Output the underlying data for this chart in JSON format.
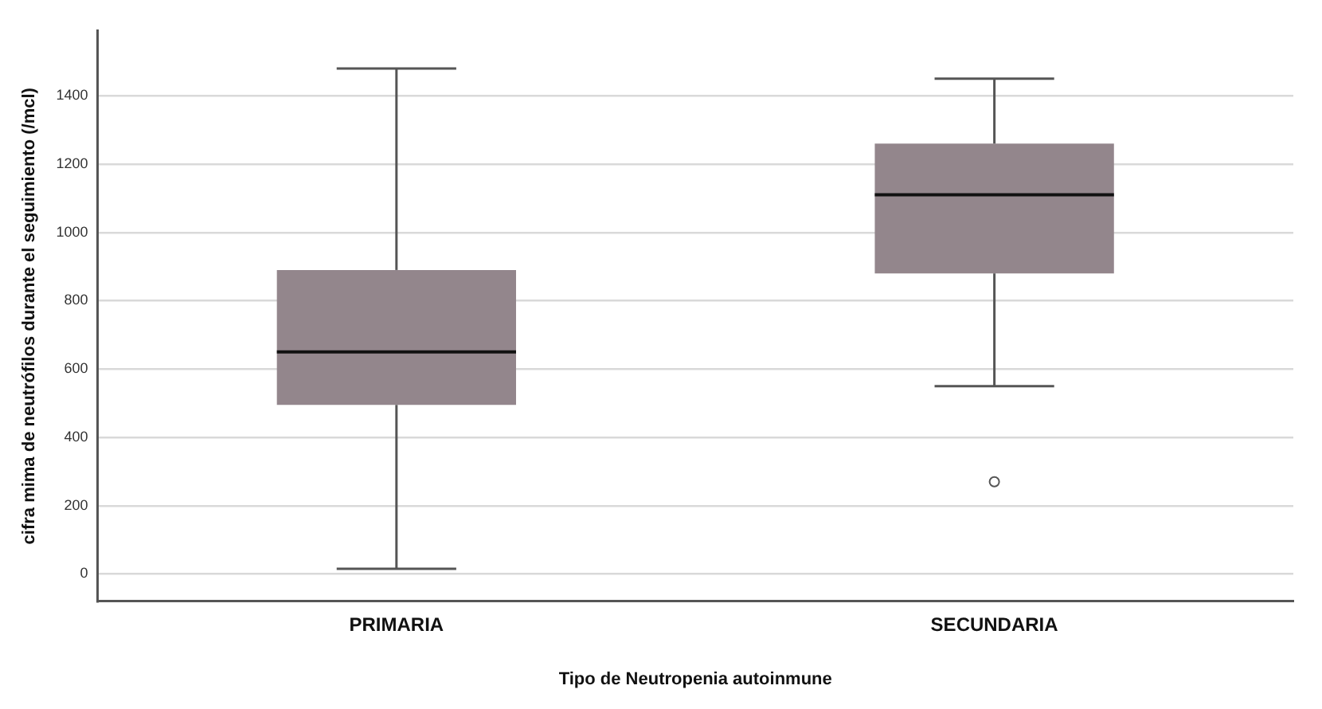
{
  "chart_data": {
    "type": "box",
    "xlabel": "Tipo de Neutropenia autoinmune",
    "ylabel": "cifra mima de neutrófilos durante el seguimiento (/mcl)",
    "categories": [
      "PRIMARIA",
      "SECUNDARIA"
    ],
    "color": "#93868c",
    "boxes": [
      {
        "low": 15,
        "q1": 495,
        "median": 650,
        "q3": 890,
        "high": 1480
      },
      {
        "low": 550,
        "q1": 880,
        "median": 1110,
        "q3": 1260,
        "high": 1450,
        "outliers": [
          270
        ]
      }
    ],
    "ylim": [
      -80,
      1590
    ],
    "yticks": [
      0,
      200,
      400,
      600,
      800,
      1000,
      1200,
      1400
    ],
    "grid": "y"
  }
}
